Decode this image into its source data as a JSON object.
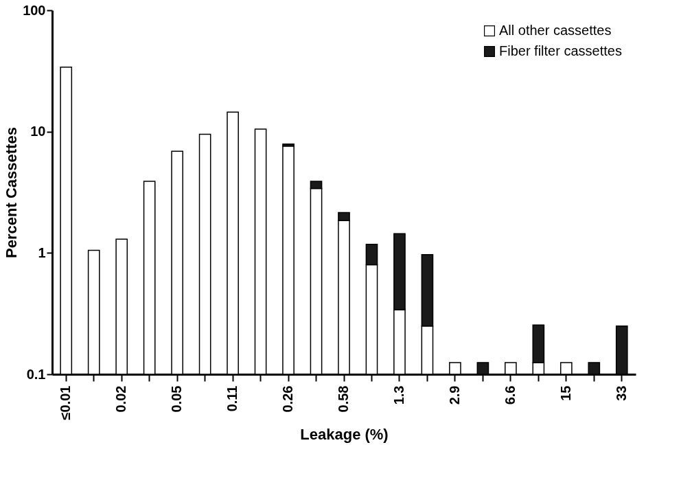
{
  "chart_data": {
    "type": "bar",
    "stacked": true,
    "log": "y",
    "xlabel": "Leakage (%)",
    "ylabel": "Percent Cassettes",
    "categories": [
      "≤0.01",
      null,
      "0.02",
      null,
      "0.05",
      null,
      "0.11",
      null,
      "0.26",
      null,
      "0.58",
      null,
      "1.3",
      null,
      "2.9",
      null,
      "6.6",
      null,
      "15",
      null,
      "33"
    ],
    "series": [
      {
        "name": "All other cassettes",
        "color": "#ffffff",
        "values": [
          34,
          1.05,
          1.3,
          3.9,
          6.9,
          9.5,
          14.5,
          10.5,
          7.6,
          3.4,
          1.85,
          0.8,
          0.34,
          0.25,
          0.125,
          null,
          0.125,
          0.125,
          0.125,
          null,
          null
        ]
      },
      {
        "name": "Fiber filter cassettes",
        "color": "#1a1a1a",
        "values": [
          null,
          null,
          null,
          null,
          null,
          null,
          null,
          null,
          0.3,
          0.5,
          0.3,
          0.38,
          1.1,
          0.72,
          null,
          0.125,
          null,
          0.13,
          null,
          0.125,
          0.25
        ]
      }
    ],
    "ylim": [
      0.1,
      100
    ],
    "yticks": [
      0.1,
      1,
      10,
      100
    ],
    "grid": false,
    "legend": "top right"
  }
}
